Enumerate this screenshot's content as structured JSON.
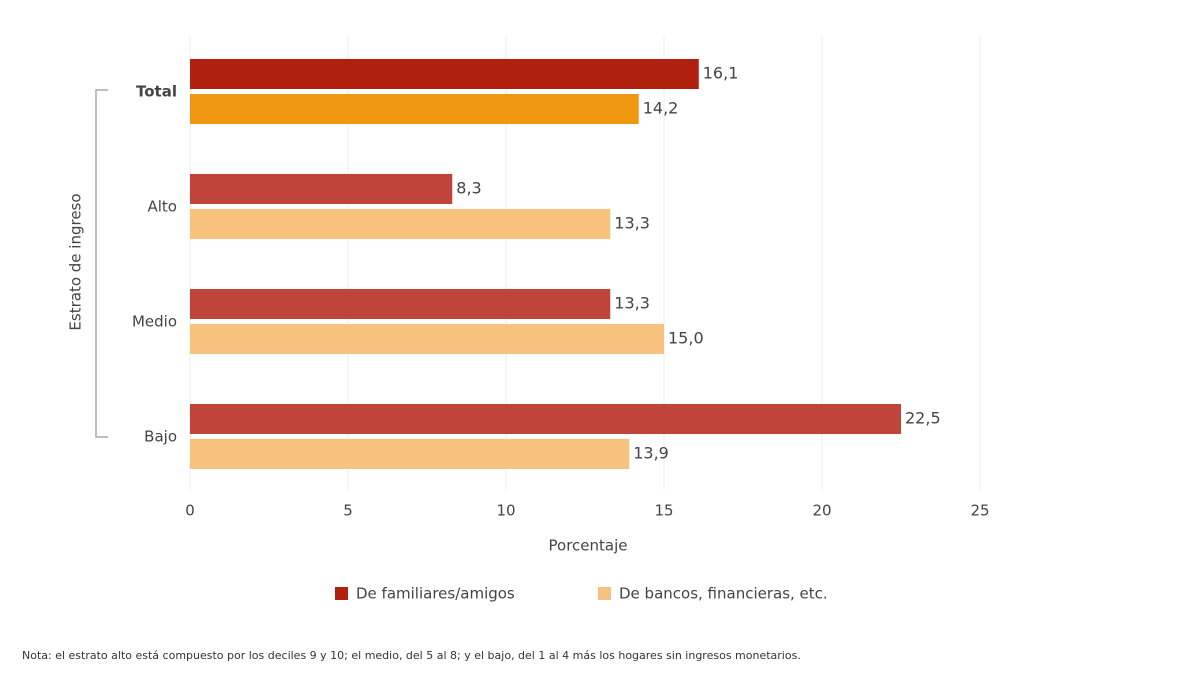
{
  "chart_data": {
    "type": "barh",
    "y_label": "Estrato de ingreso",
    "x_label": "Porcentaje",
    "note": "Nota: el estrato alto está compuesto por los deciles 9 y 10; el medio, del 5 al 8; y el bajo, del 1 al 4 más los hogares sin ingresos monetarios.",
    "categories": [
      "Total",
      "Alto",
      "Medio",
      "Bajo"
    ],
    "series": [
      {
        "name": "De familiares/amigos",
        "color": "#b0200e",
        "colors": [
          "#b0200e",
          "#c0443a",
          "#c0443a",
          "#c0443a"
        ],
        "values": [
          16.1,
          8.3,
          13.3,
          22.5
        ],
        "value_labels": [
          "16,1",
          "8,3",
          "13,3",
          "22,5"
        ]
      },
      {
        "name": "De bancos, financieras, etc.",
        "color": "#f6c27e",
        "colors": [
          "#f09610",
          "#f6c27e",
          "#f6c27e",
          "#f6c27e"
        ],
        "values": [
          14.2,
          13.3,
          15.0,
          13.9
        ],
        "value_labels": [
          "14,2",
          "13,3",
          "15,0",
          "13,9"
        ]
      }
    ],
    "xlim": [
      0,
      25
    ],
    "xticks": [
      0,
      5,
      10,
      15,
      20,
      25
    ],
    "grid": true
  }
}
